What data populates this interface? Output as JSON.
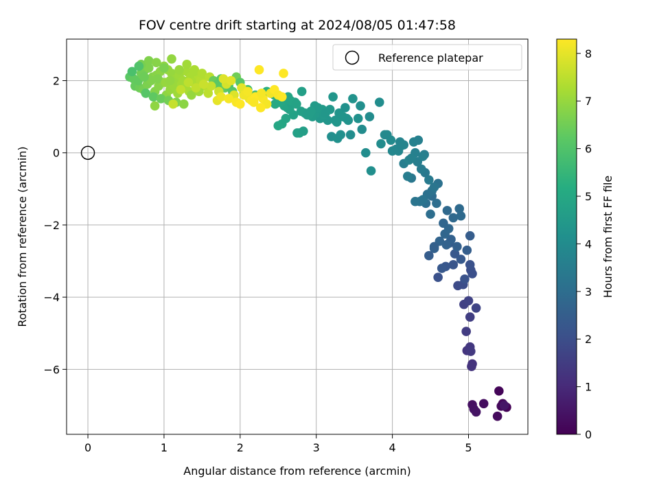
{
  "chart_data": {
    "type": "scatter",
    "title": "FOV centre drift starting at 2024/08/05 01:47:58",
    "xlabel": "Angular distance from reference (arcmin)",
    "ylabel": "Rotation from reference (arcmin)",
    "xlim": [
      -0.28,
      5.78
    ],
    "ylim": [
      -7.8,
      3.15
    ],
    "xticks": [
      0,
      1,
      2,
      3,
      4,
      5
    ],
    "yticks": [
      -6,
      -4,
      -2,
      0,
      2
    ],
    "grid": true,
    "legend": {
      "position": "top-right",
      "entries": [
        "Reference platepar"
      ]
    },
    "reference_point": {
      "x": 0,
      "y": 0
    },
    "colorbar": {
      "label": "Hours from first FF file",
      "range": [
        0,
        8.3
      ],
      "ticks": [
        0,
        1,
        2,
        3,
        4,
        5,
        6,
        7,
        8
      ],
      "colormap": "viridis"
    },
    "series": [
      {
        "x": [
          5.4,
          5.45,
          5.5,
          5.43,
          5.38,
          5.2,
          5.05,
          5.07,
          5.1,
          5.47,
          5.05,
          5.04,
          4.98,
          5.02,
          5.03,
          4.97,
          5.02,
          4.94,
          5.0,
          5.1,
          4.86,
          4.93,
          5.03,
          5.05,
          5.02,
          4.95,
          4.8,
          4.7,
          4.6,
          4.65,
          4.82,
          4.9,
          4.75,
          5.02,
          4.98,
          4.85,
          4.77,
          4.71,
          4.55,
          4.62,
          4.69,
          4.74,
          4.8,
          4.88,
          4.52,
          4.67,
          4.72,
          4.9,
          4.58,
          4.5,
          4.48,
          4.55,
          4.44,
          4.46,
          4.52,
          4.4,
          4.6,
          4.36,
          4.3,
          4.25,
          4.43,
          4.55,
          4.48,
          4.38,
          4.42,
          4.2,
          4.15,
          4.3,
          4.33,
          4.28,
          4.34,
          4.22,
          4.4,
          4.1,
          4.05,
          4.0,
          4.15,
          3.93,
          4.25,
          3.85,
          3.98,
          3.9,
          3.65,
          3.72,
          4.08,
          4.12
        ],
        "y": [
          -6.6,
          -6.95,
          -7.05,
          -7.02,
          -7.3,
          -6.95,
          -6.98,
          -7.1,
          -7.18,
          -7.0,
          -5.85,
          -5.92,
          -5.48,
          -5.38,
          -5.5,
          -4.95,
          -4.55,
          -4.2,
          -4.1,
          -4.3,
          -3.68,
          -3.65,
          -3.25,
          -3.35,
          -3.1,
          -3.5,
          -3.1,
          -3.15,
          -3.45,
          -3.2,
          -2.8,
          -2.95,
          -2.5,
          -2.3,
          -2.7,
          -2.6,
          -2.4,
          -2.55,
          -2.65,
          -2.45,
          -2.25,
          -2.1,
          -1.8,
          -1.55,
          -1.2,
          -1.95,
          -1.6,
          -1.75,
          -1.4,
          -1.7,
          -2.85,
          -2.6,
          -1.4,
          -1.15,
          -1.05,
          -1.3,
          -0.85,
          -1.35,
          -1.35,
          -0.7,
          -0.55,
          -0.95,
          -0.75,
          -0.45,
          -0.05,
          -0.65,
          -0.3,
          0.0,
          -0.25,
          0.3,
          0.35,
          -0.2,
          -0.1,
          0.3,
          0.1,
          0.05,
          0.22,
          0.5,
          -0.15,
          0.25,
          0.35,
          0.5,
          0.0,
          -0.5,
          0.05,
          0.2
        ],
        "t": [
          0.1,
          0.15,
          0.05,
          0.2,
          0.25,
          0.3,
          0.35,
          0.4,
          0.45,
          0.5,
          1.2,
          1.25,
          1.3,
          1.35,
          1.4,
          1.5,
          1.55,
          1.6,
          1.65,
          1.7,
          1.9,
          1.95,
          2.0,
          2.05,
          2.1,
          2.15,
          2.2,
          2.25,
          2.1,
          2.3,
          2.3,
          2.35,
          2.4,
          2.45,
          2.5,
          2.55,
          2.6,
          2.65,
          2.6,
          2.7,
          2.75,
          2.8,
          2.85,
          2.9,
          2.95,
          2.75,
          2.85,
          2.9,
          3.0,
          3.0,
          2.45,
          2.55,
          3.05,
          3.1,
          3.15,
          3.2,
          3.1,
          3.2,
          3.25,
          3.3,
          3.35,
          3.25,
          3.4,
          3.45,
          3.5,
          3.5,
          3.55,
          3.6,
          3.55,
          3.65,
          3.6,
          3.7,
          3.6,
          3.75,
          3.8,
          3.85,
          3.7,
          3.9,
          3.65,
          4.0,
          3.95,
          3.9,
          4.05,
          4.1,
          3.8,
          3.75
        ]
      },
      {
        "x": [
          3.2,
          3.28,
          3.32,
          3.45,
          3.6,
          3.55,
          3.4,
          3.25,
          3.15,
          3.05,
          3.0,
          2.95,
          3.1,
          3.35,
          3.48,
          3.22,
          3.18,
          3.3,
          3.38,
          3.08,
          2.9,
          2.85,
          2.8,
          2.7,
          2.65,
          2.6,
          2.55,
          2.5,
          2.75,
          2.78,
          2.83,
          2.88,
          2.62,
          2.58,
          2.68,
          2.72,
          2.98,
          3.02,
          3.12,
          3.42,
          3.27,
          2.93,
          2.46,
          2.52,
          2.57,
          2.63,
          2.81,
          3.58,
          3.83,
          3.7,
          2.45,
          2.4,
          2.35,
          2.6,
          2.66,
          2.74
        ],
        "y": [
          0.45,
          0.4,
          0.5,
          0.5,
          0.65,
          0.95,
          0.95,
          0.9,
          0.9,
          0.95,
          1.1,
          1.0,
          1.05,
          1.0,
          1.5,
          1.55,
          1.2,
          1.1,
          1.25,
          1.2,
          1.05,
          1.1,
          1.15,
          1.05,
          1.2,
          0.95,
          0.8,
          0.75,
          0.55,
          0.55,
          0.6,
          1.05,
          1.25,
          1.3,
          1.35,
          1.4,
          1.3,
          1.25,
          1.1,
          0.9,
          0.85,
          1.15,
          1.35,
          1.4,
          1.45,
          1.55,
          1.7,
          1.3,
          1.4,
          1.0,
          1.6,
          1.65,
          1.7,
          1.5,
          1.45,
          1.35
        ],
        "t": [
          4.1,
          4.2,
          4.15,
          4.05,
          4.0,
          4.2,
          4.25,
          4.3,
          4.35,
          4.4,
          4.5,
          4.55,
          4.45,
          4.3,
          4.25,
          4.35,
          4.4,
          4.3,
          4.2,
          4.5,
          4.6,
          4.65,
          4.7,
          4.75,
          4.8,
          4.85,
          4.9,
          4.95,
          4.7,
          4.75,
          4.65,
          4.6,
          4.8,
          4.85,
          4.75,
          4.7,
          4.55,
          4.5,
          4.4,
          4.25,
          4.35,
          4.6,
          5.0,
          5.0,
          4.95,
          4.9,
          4.7,
          4.1,
          4.05,
          4.0,
          5.1,
          5.2,
          5.25,
          4.9,
          4.85,
          4.8
        ]
      },
      {
        "x": [
          0.55,
          0.6,
          0.65,
          0.7,
          0.75,
          0.8,
          0.85,
          0.9,
          0.95,
          1.0,
          1.05,
          1.1,
          1.15,
          1.2,
          1.25,
          1.3,
          1.35,
          1.4,
          1.45,
          1.5,
          0.62,
          0.68,
          0.73,
          0.78,
          0.83,
          0.88,
          0.93,
          0.98,
          1.03,
          1.08,
          1.13,
          1.18,
          1.23,
          1.28,
          1.33,
          1.38,
          1.43,
          1.48,
          1.53,
          1.58,
          0.7,
          0.8,
          0.9,
          1.0,
          1.1,
          1.2,
          1.3,
          1.4,
          1.5,
          1.6,
          0.58,
          0.67,
          0.76,
          0.86,
          0.96,
          1.06,
          1.16,
          1.26,
          1.36,
          1.46,
          1.65,
          1.7,
          1.75,
          1.8,
          1.85,
          1.9,
          1.95,
          2.0,
          2.05,
          2.1,
          2.15,
          2.2,
          1.62,
          1.72,
          1.82,
          1.92,
          2.02,
          2.12,
          0.88,
          1.12,
          0.66,
          0.72,
          0.92,
          1.02,
          1.32,
          1.42,
          1.52,
          0.74,
          1.08,
          1.22
        ],
        "y": [
          2.1,
          2.05,
          1.95,
          2.2,
          2.3,
          2.35,
          2.1,
          2.15,
          2.25,
          2.4,
          2.3,
          2.2,
          2.05,
          2.15,
          2.0,
          2.25,
          2.1,
          2.3,
          2.15,
          2.05,
          1.85,
          1.8,
          1.75,
          1.9,
          2.0,
          1.7,
          1.85,
          1.95,
          1.6,
          1.75,
          1.85,
          1.65,
          1.9,
          1.8,
          1.7,
          1.95,
          1.75,
          2.0,
          1.85,
          1.65,
          2.45,
          2.55,
          2.5,
          2.35,
          2.6,
          2.3,
          2.45,
          2.25,
          2.2,
          2.1,
          2.25,
          2.4,
          1.65,
          1.55,
          1.5,
          1.45,
          1.4,
          1.35,
          1.6,
          1.7,
          2.0,
          1.9,
          2.05,
          1.8,
          1.85,
          1.7,
          2.1,
          1.95,
          1.65,
          1.75,
          1.55,
          1.6,
          1.85,
          1.7,
          1.9,
          1.6,
          1.8,
          1.5,
          1.3,
          1.35,
          2.0,
          2.15,
          2.05,
          1.95,
          1.95,
          1.8,
          1.9,
          2.1,
          2.0,
          1.75
        ],
        "t": [
          6.2,
          6.3,
          6.4,
          6.5,
          6.6,
          6.7,
          6.75,
          6.8,
          6.85,
          6.9,
          6.95,
          7.0,
          7.05,
          7.1,
          7.15,
          7.2,
          7.25,
          7.3,
          7.35,
          7.4,
          6.35,
          6.45,
          6.55,
          6.65,
          6.7,
          6.75,
          6.8,
          6.85,
          6.9,
          7.0,
          7.05,
          7.1,
          7.15,
          7.2,
          7.25,
          7.3,
          7.35,
          7.4,
          7.45,
          7.5,
          6.6,
          6.7,
          6.8,
          6.65,
          6.95,
          7.05,
          7.15,
          7.25,
          7.35,
          7.45,
          5.9,
          6.0,
          6.1,
          6.25,
          6.4,
          6.55,
          6.7,
          6.85,
          7.0,
          7.15,
          6.4,
          6.2,
          6.1,
          6.3,
          5.95,
          6.05,
          6.5,
          6.15,
          5.85,
          5.8,
          5.7,
          5.65,
          7.6,
          7.7,
          7.8,
          7.9,
          8.0,
          8.1,
          6.9,
          7.6,
          6.3,
          6.5,
          6.7,
          7.0,
          7.5,
          7.55,
          7.65,
          6.45,
          6.95,
          7.55
        ]
      },
      {
        "x": [
          1.7,
          1.75,
          1.85,
          1.95,
          2.0,
          2.05,
          2.1,
          2.15,
          2.2,
          2.25,
          2.3,
          2.35,
          2.4,
          2.45,
          2.5,
          2.55,
          2.57,
          2.27,
          2.18,
          2.28,
          1.78,
          1.88
        ],
        "y": [
          1.45,
          1.55,
          1.5,
          1.4,
          1.35,
          1.6,
          1.7,
          1.45,
          1.55,
          2.3,
          1.5,
          1.35,
          1.65,
          1.75,
          1.6,
          1.55,
          2.2,
          1.25,
          1.4,
          1.65,
          2.05,
          2.0
        ],
        "t": [
          8.0,
          8.1,
          8.2,
          8.25,
          8.3,
          8.15,
          8.2,
          8.25,
          8.3,
          8.3,
          8.25,
          8.2,
          8.15,
          8.3,
          8.25,
          8.3,
          8.3,
          8.3,
          8.25,
          8.2,
          7.9,
          7.95
        ]
      }
    ]
  }
}
